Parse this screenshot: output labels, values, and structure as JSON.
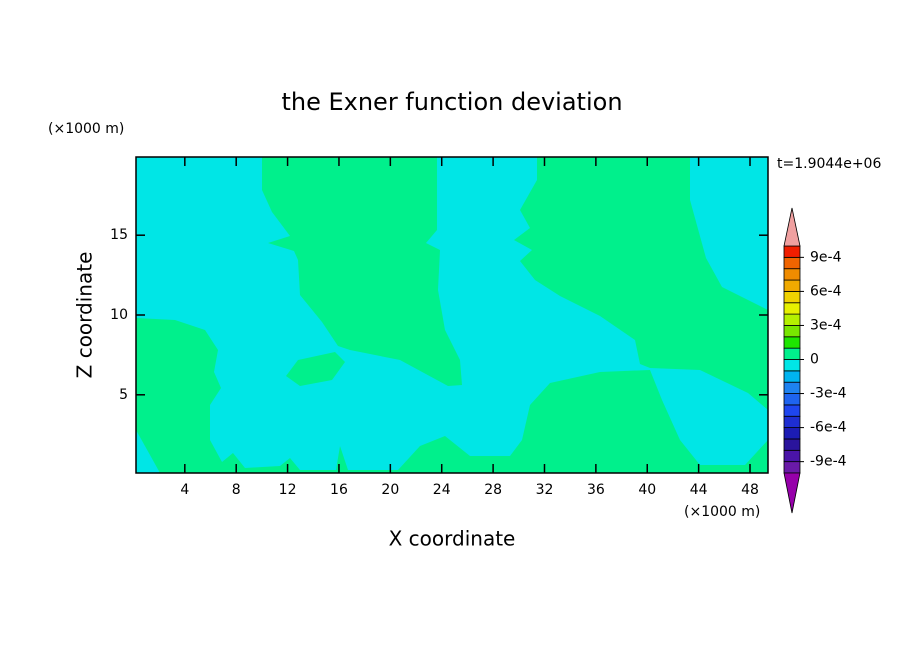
{
  "chart_data": {
    "type": "contour",
    "title": "the Exner function deviation",
    "x_label": "X coordinate",
    "y_label": "Z coordinate",
    "x_unit": "(×1000 m)",
    "y_unit": "(×1000 m)",
    "time_label": "t=1.9044e+06",
    "xlim": [
      0.2,
      49.4
    ],
    "ylim": [
      0.1,
      19.9
    ],
    "xticks": [
      4,
      8,
      12,
      16,
      20,
      24,
      28,
      32,
      36,
      40,
      44,
      48
    ],
    "yticks": [
      5,
      10,
      15
    ],
    "colorbar": {
      "levels": [
        -0.001,
        -0.0009,
        -0.0008,
        -0.0007,
        -0.0006,
        -0.0005,
        -0.0004,
        -0.0003,
        -0.0002,
        -0.0001,
        0,
        0.0001,
        0.0002,
        0.0003,
        0.0004,
        0.0005,
        0.0006,
        0.0007,
        0.0008,
        0.0009,
        0.001
      ],
      "colors": [
        "#6a1aa8",
        "#4a14a8",
        "#2a149c",
        "#1c1cb4",
        "#1e2ed2",
        "#1e46f0",
        "#1e64f0",
        "#1e82f0",
        "#00b4f0",
        "#00e6e6",
        "#00f08c",
        "#1ee600",
        "#78e600",
        "#b4f000",
        "#e6f000",
        "#f0d200",
        "#f0aa00",
        "#f08c00",
        "#f06400",
        "#f01e00"
      ],
      "over_color": "#f0a0a0",
      "under_color": "#9600aa",
      "ticks": [
        {
          "value": -0.0009,
          "label": "-9e-4"
        },
        {
          "value": -0.0006,
          "label": "-6e-4"
        },
        {
          "value": -0.0003,
          "label": "-3e-4"
        },
        0,
        {
          "value": 0.0003,
          "label": "3e-4"
        },
        {
          "value": 0.0006,
          "label": "6e-4"
        },
        {
          "value": 0.0009,
          "label": "9e-4"
        }
      ]
    }
  }
}
